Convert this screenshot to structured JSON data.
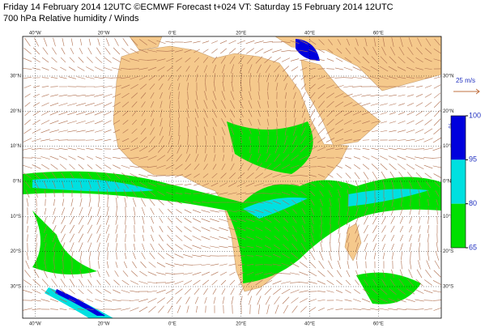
{
  "header": {
    "line1": "Friday 14 February 2014 12UTC ©ECMWF Forecast t+024 VT: Saturday 15 February 2014 12UTC",
    "line2": "700 hPa Relative humidity / Winds"
  },
  "map": {
    "lon_range": [
      -43.6,
      78.3
    ],
    "lat_range": [
      41.3,
      -39
    ],
    "lon_ticks": [
      {
        "value": -40,
        "label": "40°W"
      },
      {
        "value": -20,
        "label": "20°W"
      },
      {
        "value": 0,
        "label": "0°E"
      },
      {
        "value": 20,
        "label": "20°E"
      },
      {
        "value": 40,
        "label": "40°E"
      },
      {
        "value": 60,
        "label": "60°E"
      }
    ],
    "lat_ticks": [
      {
        "value": 30,
        "label": "30°N"
      },
      {
        "value": 20,
        "label": "20°N"
      },
      {
        "value": 10,
        "label": "10°N"
      },
      {
        "value": 0,
        "label": "0°N"
      },
      {
        "value": -10,
        "label": "10°S"
      },
      {
        "value": -20,
        "label": "20°S"
      },
      {
        "value": -30,
        "label": "30°S"
      }
    ]
  },
  "wind_scale": {
    "label": "25 m/s"
  },
  "colorbar": {
    "unit": "%",
    "levels": [
      100,
      95,
      80,
      65
    ],
    "colors": [
      "#0000dd",
      "#00e0e0",
      "#00e000"
    ]
  }
}
